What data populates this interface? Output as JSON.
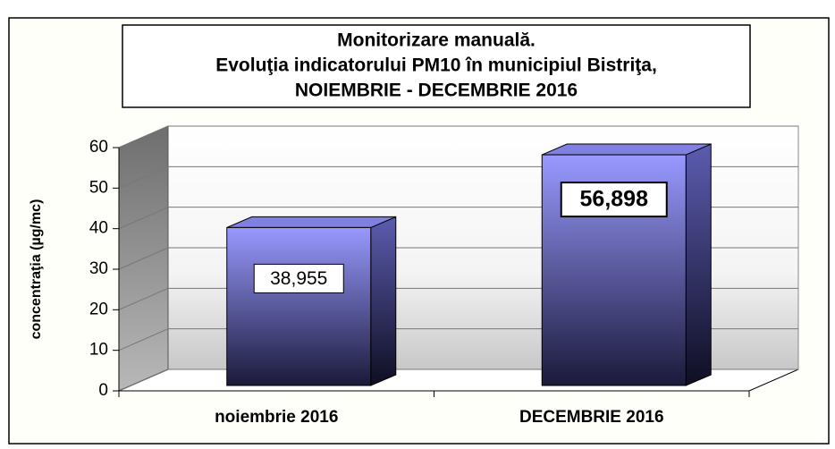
{
  "chart_data": {
    "type": "bar3d",
    "title": [
      "Monitorizare manuală.",
      "Evoluţia indicatorului PM10 în municipiul Bistriţa,",
      "NOIEMBRIE  - DECEMBRIE  2016"
    ],
    "y_label": "concentraţia (µg/mc)",
    "categories": [
      "noiembrie 2016",
      "DECEMBRIE 2016"
    ],
    "values": [
      38.955,
      56.898
    ],
    "value_labels": [
      "38,955",
      "56,898"
    ],
    "color": "#9999ff",
    "ylim": [
      0,
      60
    ],
    "yticks": [
      0,
      10,
      20,
      30,
      40,
      50,
      60
    ],
    "grid": true
  }
}
